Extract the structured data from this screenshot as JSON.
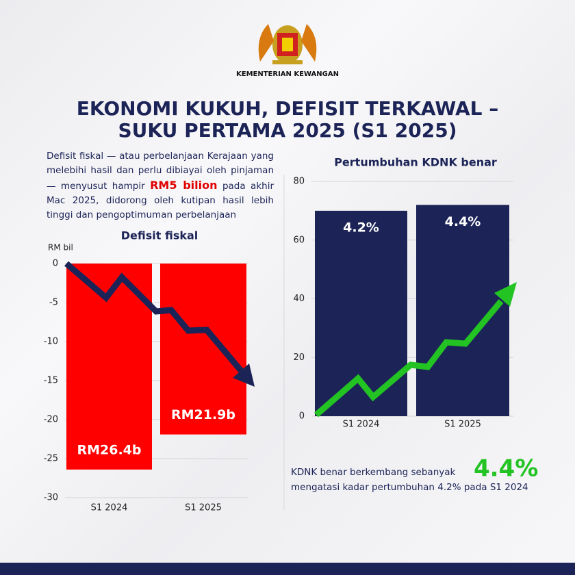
{
  "header": {
    "org": "KEMENTERIAN KEWANGAN",
    "title_lines": [
      "EKONOMI KUKUH, DEFISIT TERKAWAL –",
      "SUKU PERTAMA 2025 (S1 2025)"
    ]
  },
  "intro": {
    "before": "Defisit fiskal — atau perbelanjaan Kerajaan yang melebihi hasil dan perlu dibiayai oleh pinjaman — menyusut hampir",
    "highlight": "RM5 bilion",
    "after": "pada akhir Mac 2025, didorong oleh kutipan hasil lebih tinggi dan pengoptimuman perbelanjaan"
  },
  "chart_data": [
    {
      "type": "bar",
      "title": "Defisit fiskal",
      "y_label": "RM bil",
      "categories": [
        "S1 2024",
        "S1 2025"
      ],
      "values": [
        -26.4,
        -21.9
      ],
      "value_labels": [
        "RM26.4b",
        "RM21.9b"
      ],
      "color": "#ff0000",
      "ylim": [
        -30,
        0
      ],
      "yticks": [
        0,
        -5,
        -10,
        -15,
        -20,
        -25,
        -30
      ],
      "grid": true
    },
    {
      "type": "bar",
      "title": "Pertumbuhan KDNK benar",
      "categories": [
        "S1 2024",
        "S1 2025"
      ],
      "values": [
        70,
        72
      ],
      "bar_texts": [
        "4.2%",
        "4.4%"
      ],
      "color": "#1c2457",
      "ylim": [
        0,
        80
      ],
      "yticks": [
        0,
        20,
        40,
        60,
        80
      ],
      "grid": true
    }
  ],
  "footnote": {
    "before": "KDNK benar berkembang sebanyak",
    "highlight": "4.4%",
    "after": "mengatasi kadar pertumbuhan 4.2% pada S1 2024"
  }
}
